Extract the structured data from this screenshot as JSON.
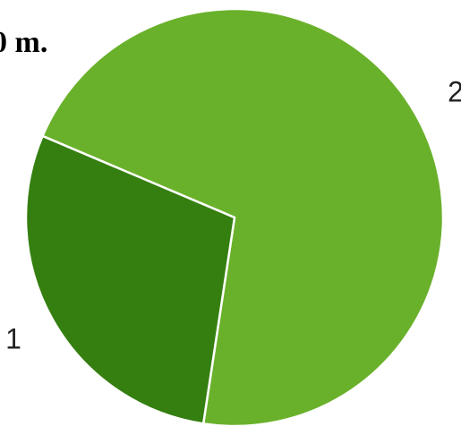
{
  "chart_data": {
    "type": "pie",
    "title": "0 m.",
    "categories": [
      "2",
      "1"
    ],
    "values": [
      71,
      29
    ],
    "colors": [
      "#6ab12b",
      "#347f10"
    ]
  }
}
